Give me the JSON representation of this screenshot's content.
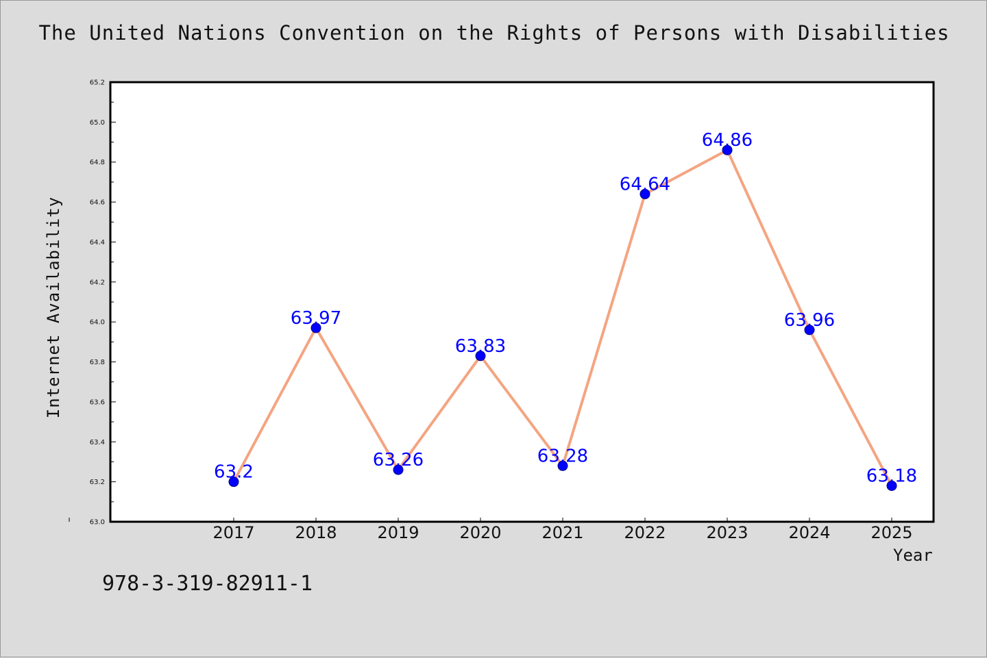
{
  "chart_data": {
    "type": "line",
    "title": "The United Nations Convention on the Rights of Persons with Disabilities",
    "xlabel": "Year",
    "ylabel": "Internet Availability",
    "x": [
      "2017",
      "2018",
      "2019",
      "2020",
      "2021",
      "2022",
      "2023",
      "2024",
      "2025"
    ],
    "series": [
      {
        "values": [
          63.2,
          63.97,
          63.26,
          63.83,
          63.28,
          64.64,
          64.86,
          63.96,
          63.18
        ],
        "labels": [
          "63.2",
          "63.97",
          "63.26",
          "63.83",
          "63.28",
          "64.64",
          "64.86",
          "63.96",
          "63.18"
        ],
        "line_color": "#f4a582",
        "marker_color": "#0000ff"
      }
    ],
    "ylim": [
      63.0,
      65.2
    ],
    "yticks": [
      "63.0",
      "63.2",
      "63.4",
      "63.6",
      "63.8",
      "64.0",
      "64.2",
      "64.4",
      "64.6",
      "64.8",
      "65.0",
      "65.2"
    ],
    "grid": false,
    "label_color": "#0000ff"
  },
  "footer": {
    "isbn": "978-3-319-82911-1"
  }
}
